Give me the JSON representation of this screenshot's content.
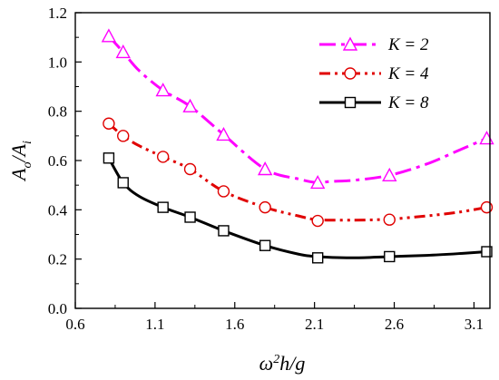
{
  "chart_data": {
    "type": "line",
    "xlabel": "ω²h/g",
    "ylabel": "Ao/Ai",
    "xlim": [
      0.6,
      3.2
    ],
    "ylim": [
      0.0,
      1.2
    ],
    "xticks": [
      "0.6",
      "1.1",
      "1.6",
      "2.1",
      "2.6",
      "3.1"
    ],
    "yticks": [
      "0.0",
      "0.2",
      "0.4",
      "0.6",
      "0.8",
      "1.0",
      "1.2"
    ],
    "grid": false,
    "legend_position": "top-right",
    "series": [
      {
        "name": "K = 2",
        "color": "#ff00ff",
        "marker": "triangle",
        "line_style": "dash-dot",
        "x": [
          0.81,
          0.9,
          1.15,
          1.32,
          1.53,
          1.79,
          2.12,
          2.57,
          3.18
        ],
        "y": [
          1.105,
          1.04,
          0.885,
          0.82,
          0.705,
          0.565,
          0.51,
          0.54,
          0.69
        ],
        "curve_x": [
          0.81,
          0.9,
          1.0,
          1.15,
          1.32,
          1.53,
          1.79,
          2.0,
          2.12,
          2.2,
          2.35,
          2.57,
          2.8,
          3.0,
          3.18
        ],
        "curve_y": [
          1.105,
          1.04,
          0.965,
          0.885,
          0.82,
          0.705,
          0.565,
          0.525,
          0.51,
          0.515,
          0.52,
          0.54,
          0.585,
          0.64,
          0.69
        ]
      },
      {
        "name": "K = 4",
        "color": "#e00000",
        "marker": "circle",
        "line_style": "dash-dot-dot",
        "x": [
          0.81,
          0.9,
          1.15,
          1.32,
          1.53,
          1.79,
          2.12,
          2.57,
          3.18
        ],
        "y": [
          0.75,
          0.7,
          0.615,
          0.565,
          0.475,
          0.41,
          0.355,
          0.36,
          0.41
        ],
        "curve_x": [
          0.81,
          0.9,
          1.0,
          1.15,
          1.32,
          1.53,
          1.79,
          2.0,
          2.12,
          2.35,
          2.57,
          2.8,
          3.0,
          3.18
        ],
        "curve_y": [
          0.75,
          0.7,
          0.66,
          0.615,
          0.565,
          0.475,
          0.41,
          0.375,
          0.36,
          0.358,
          0.362,
          0.375,
          0.39,
          0.41
        ]
      },
      {
        "name": "K = 8",
        "color": "#000000",
        "marker": "square",
        "line_style": "solid",
        "x": [
          0.81,
          0.9,
          1.15,
          1.32,
          1.53,
          1.79,
          2.12,
          2.57,
          3.18
        ],
        "y": [
          0.61,
          0.51,
          0.41,
          0.37,
          0.315,
          0.255,
          0.205,
          0.21,
          0.23
        ],
        "curve_x": [
          0.81,
          0.9,
          1.0,
          1.15,
          1.32,
          1.53,
          1.79,
          2.0,
          2.12,
          2.35,
          2.57,
          2.8,
          3.0,
          3.18
        ],
        "curve_y": [
          0.61,
          0.51,
          0.455,
          0.41,
          0.37,
          0.315,
          0.255,
          0.22,
          0.21,
          0.205,
          0.21,
          0.215,
          0.222,
          0.23
        ]
      }
    ]
  }
}
